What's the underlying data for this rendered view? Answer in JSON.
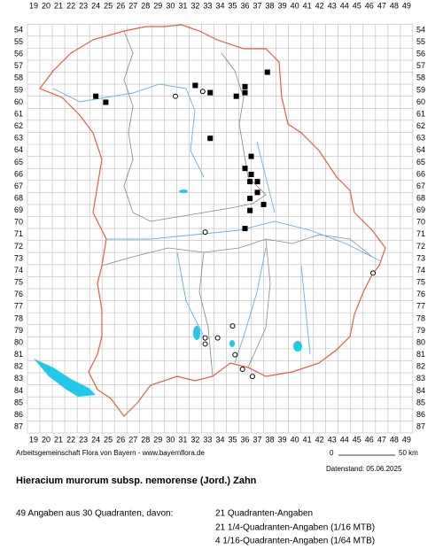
{
  "grid": {
    "columns": [
      19,
      20,
      21,
      22,
      23,
      24,
      25,
      26,
      27,
      28,
      29,
      30,
      31,
      32,
      33,
      34,
      35,
      36,
      37,
      38,
      39,
      40,
      41,
      42,
      43,
      44,
      45,
      46,
      47,
      48,
      49
    ],
    "rows": [
      54,
      55,
      56,
      57,
      58,
      59,
      60,
      61,
      62,
      63,
      64,
      65,
      66,
      67,
      68,
      69,
      70,
      71,
      72,
      73,
      74,
      75,
      76,
      77,
      78,
      79,
      80,
      81,
      82,
      83,
      84,
      85,
      86,
      87
    ]
  },
  "records": {
    "squares": [
      [
        37.8,
        57.5
      ],
      [
        32,
        58.6
      ],
      [
        36,
        58.7
      ],
      [
        36,
        59.2
      ],
      [
        33.2,
        59.2
      ],
      [
        24,
        59.5
      ],
      [
        24.8,
        60
      ],
      [
        35.3,
        59.5
      ],
      [
        33.2,
        63
      ],
      [
        36.5,
        64.5
      ],
      [
        36,
        65.5
      ],
      [
        36.5,
        66
      ],
      [
        36.4,
        66.6
      ],
      [
        37,
        66.6
      ],
      [
        37,
        67.5
      ],
      [
        36.4,
        68
      ],
      [
        37.5,
        68.5
      ],
      [
        36.4,
        69
      ],
      [
        36,
        70.5
      ]
    ],
    "circles": [
      [
        30.4,
        59.5
      ],
      [
        32.6,
        59.1
      ],
      [
        32.8,
        70.8
      ],
      [
        46.3,
        74.2
      ],
      [
        35,
        78.6
      ],
      [
        32.8,
        79.6
      ],
      [
        32.8,
        80.1
      ],
      [
        33.8,
        79.6
      ],
      [
        35.2,
        81
      ],
      [
        35.8,
        82.2
      ],
      [
        36.6,
        82.8
      ]
    ]
  },
  "credit": "Arbeitsgemeinschaft Flora von Bayern - www.bayernflora.de",
  "scale": {
    "start": "0",
    "end": "50 km"
  },
  "date": "Datenstand: 05.06.2025",
  "title": "Hieracium murorum subsp. nemorense (Jord.) Zahn",
  "summary": "49 Angaben aus 30 Quadranten, davon:",
  "details": [
    "21 Quadranten-Angaben",
    "21 1/4-Quadranten-Angaben (1/16 MTB)",
    "4 1/16-Quadranten-Angaben (1/64 MTB)"
  ]
}
